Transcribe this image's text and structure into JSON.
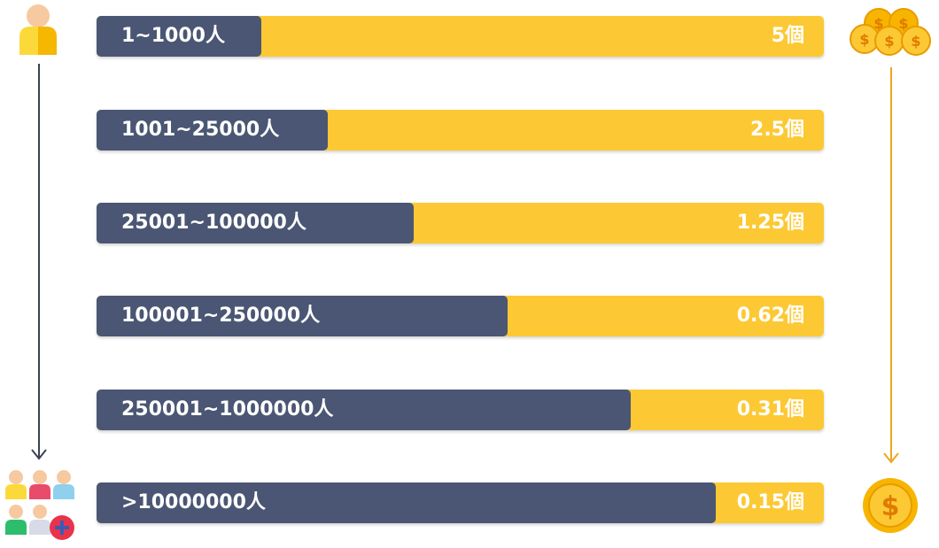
{
  "rows": [
    {
      "range_label": "1~1000人",
      "value_label": "5個",
      "coins": 5
    },
    {
      "range_label": "1001~25000人",
      "value_label": "2.5個",
      "coins": 2.5
    },
    {
      "range_label": "25001~100000人",
      "value_label": "1.25個",
      "coins": 1.25
    },
    {
      "range_label": "100001~250000人",
      "value_label": "0.62個",
      "coins": 0.62
    },
    {
      "range_label": "250001~1000000人",
      "value_label": "0.31個",
      "coins": 0.31
    },
    {
      "range_label": ">10000000人",
      "value_label": "0.15個",
      "coins": 0.15
    }
  ],
  "colors": {
    "dark_bar": "#4a5673",
    "yellow_bar": "#fcc934",
    "left_arrow": "#3b4254",
    "right_arrow": "#f0a51c",
    "coin": "#f7b500"
  },
  "icons": {
    "top_left": "single-person-icon",
    "bottom_left": "group-people-icon",
    "top_right": "many-coins-icon",
    "bottom_right": "single-coin-icon"
  }
}
